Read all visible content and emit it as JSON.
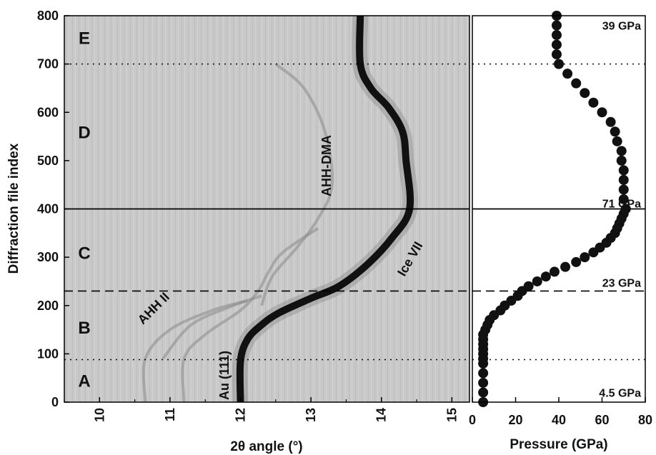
{
  "chart_data": [
    {
      "type": "heatmap",
      "xlabel": "2θ angle (°)",
      "ylabel": "Diffraction file index",
      "xlim": [
        9.5,
        15.25
      ],
      "ylim": [
        0,
        800
      ],
      "xticks": [
        10,
        11,
        12,
        13,
        14,
        15
      ],
      "yticks": [
        0,
        100,
        200,
        300,
        400,
        500,
        600,
        700,
        800
      ],
      "regions": [
        {
          "label": "A",
          "y": 45
        },
        {
          "label": "B",
          "y": 155
        },
        {
          "label": "C",
          "y": 310
        },
        {
          "label": "D",
          "y": 560
        },
        {
          "label": "E",
          "y": 755
        }
      ],
      "boundaries": [
        {
          "y": 88,
          "style": "dotted"
        },
        {
          "y": 230,
          "style": "dashed"
        },
        {
          "y": 400,
          "style": "solid"
        },
        {
          "y": 700,
          "style": "dotted"
        }
      ],
      "annotations": [
        "AHH II",
        "Au (111)",
        "AHH-DMA",
        "Ice VII"
      ],
      "traces": [
        {
          "name": "Ice VII",
          "strong": true,
          "points": [
            [
              12.0,
              0
            ],
            [
              12.0,
              85
            ],
            [
              12.1,
              130
            ],
            [
              12.3,
              160
            ],
            [
              12.55,
              185
            ],
            [
              13.0,
              215
            ],
            [
              13.4,
              240
            ],
            [
              13.8,
              285
            ],
            [
              14.15,
              340
            ],
            [
              14.4,
              400
            ],
            [
              14.35,
              500
            ],
            [
              14.3,
              560
            ],
            [
              14.1,
              610
            ],
            [
              13.85,
              650
            ],
            [
              13.7,
              700
            ],
            [
              13.7,
              800
            ]
          ]
        },
        {
          "name": "AHH-DMA",
          "strong": false,
          "points": [
            [
              12.3,
              200
            ],
            [
              12.45,
              260
            ],
            [
              12.8,
              320
            ],
            [
              13.1,
              380
            ],
            [
              13.3,
              450
            ],
            [
              13.2,
              560
            ],
            [
              12.9,
              650
            ],
            [
              12.5,
              700
            ]
          ]
        },
        {
          "name": "Au (111)",
          "strong": false,
          "points": [
            [
              11.2,
              0
            ],
            [
              11.2,
              90
            ],
            [
              11.5,
              140
            ],
            [
              12.0,
              190
            ],
            [
              12.25,
              230
            ],
            [
              12.4,
              270
            ],
            [
              12.6,
              310
            ],
            [
              13.1,
              360
            ]
          ]
        },
        {
          "name": "AHH II",
          "strong": false,
          "points": [
            [
              10.65,
              0
            ],
            [
              10.65,
              90
            ],
            [
              11.0,
              150
            ],
            [
              11.6,
              190
            ],
            [
              12.1,
              210
            ]
          ]
        },
        {
          "name": "AHH II",
          "strong": false,
          "points": [
            [
              10.9,
              90
            ],
            [
              11.3,
              160
            ],
            [
              11.9,
              200
            ],
            [
              12.3,
              220
            ]
          ]
        }
      ]
    },
    {
      "type": "scatter",
      "xlabel": "Pressure (GPa)",
      "xlim": [
        0,
        80
      ],
      "ylim": [
        0,
        800
      ],
      "xticks": [
        0,
        20,
        40,
        60,
        80
      ],
      "pressure_labels": [
        {
          "text": "39 GPa",
          "y": 780
        },
        {
          "text": "71 GPa",
          "y": 412
        },
        {
          "text": "23 GPa",
          "y": 248
        },
        {
          "text": "4.5 GPa",
          "y": 20
        }
      ],
      "points": [
        [
          5,
          0
        ],
        [
          5,
          20
        ],
        [
          5,
          40
        ],
        [
          5,
          60
        ],
        [
          5,
          80
        ],
        [
          5,
          90
        ],
        [
          5,
          100
        ],
        [
          5,
          110
        ],
        [
          5,
          120
        ],
        [
          5,
          130
        ],
        [
          5,
          140
        ],
        [
          6,
          150
        ],
        [
          7,
          160
        ],
        [
          8,
          170
        ],
        [
          10,
          180
        ],
        [
          13,
          190
        ],
        [
          15,
          200
        ],
        [
          18,
          210
        ],
        [
          21,
          220
        ],
        [
          23,
          230
        ],
        [
          26,
          240
        ],
        [
          30,
          250
        ],
        [
          34,
          260
        ],
        [
          38,
          270
        ],
        [
          43,
          280
        ],
        [
          48,
          290
        ],
        [
          52,
          300
        ],
        [
          56,
          310
        ],
        [
          59,
          320
        ],
        [
          62,
          330
        ],
        [
          64,
          340
        ],
        [
          66,
          350
        ],
        [
          67,
          360
        ],
        [
          68,
          370
        ],
        [
          69,
          380
        ],
        [
          70,
          390
        ],
        [
          71,
          400
        ],
        [
          70,
          420
        ],
        [
          70,
          440
        ],
        [
          70,
          460
        ],
        [
          70,
          480
        ],
        [
          69,
          500
        ],
        [
          69,
          520
        ],
        [
          67,
          540
        ],
        [
          66,
          560
        ],
        [
          64,
          580
        ],
        [
          60,
          600
        ],
        [
          56,
          620
        ],
        [
          52,
          640
        ],
        [
          48,
          660
        ],
        [
          44,
          680
        ],
        [
          40,
          700
        ],
        [
          39,
          720
        ],
        [
          39,
          740
        ],
        [
          39,
          760
        ],
        [
          39,
          780
        ],
        [
          39,
          800
        ]
      ]
    }
  ]
}
